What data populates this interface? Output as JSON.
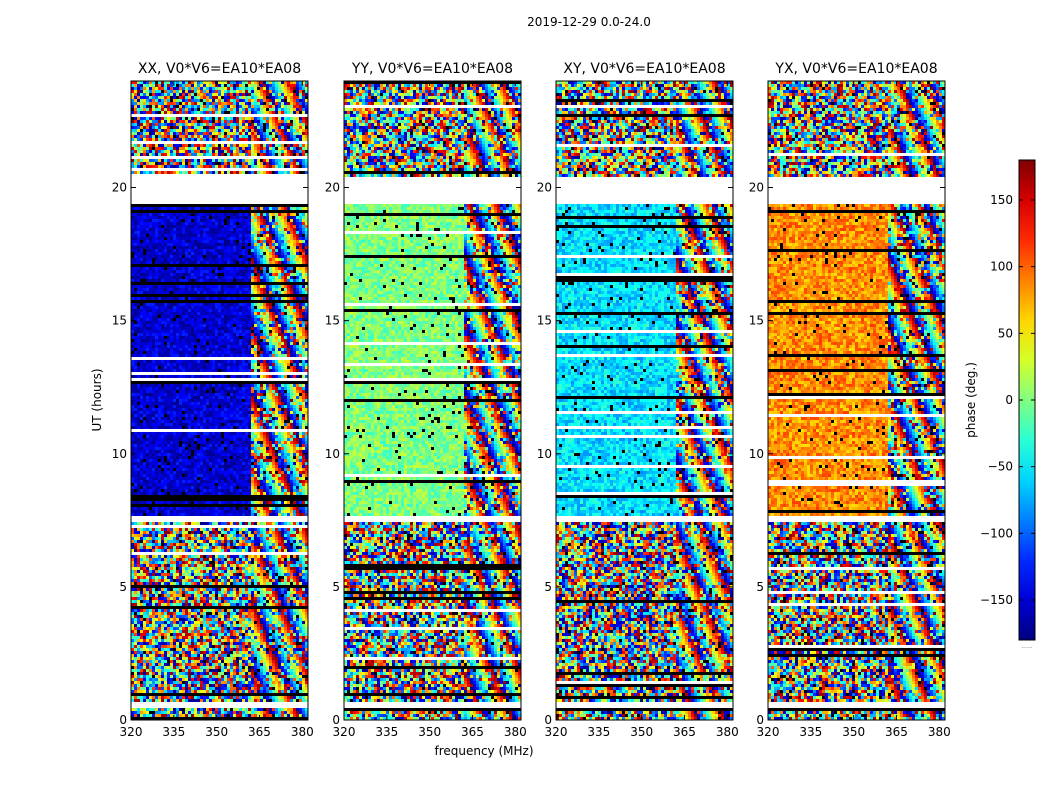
{
  "figure": {
    "suptitle": "2019-12-29 0.0-24.0",
    "xlabel": "frequency (MHz)",
    "ylabel": "UT (hours)",
    "colorbar_label": "phase (deg.)",
    "colorbar_bottom_label": "......",
    "colors": {
      "background": "#ffffff",
      "gap": "#ffffff",
      "flag": "#000000"
    }
  },
  "chart_data": {
    "type": "heatmap",
    "colormap": "jet",
    "x": {
      "label": "frequency (MHz)",
      "range": [
        320,
        382
      ],
      "ticks": [
        320,
        335,
        350,
        365,
        380
      ]
    },
    "y": {
      "label": "UT (hours)",
      "range": [
        0,
        24
      ],
      "ticks": [
        0,
        5,
        10,
        15,
        20
      ]
    },
    "color_scale": {
      "label": "phase (deg.)",
      "range": [
        -180,
        180
      ],
      "ticks": [
        -150,
        -100,
        -50,
        0,
        50,
        100,
        150
      ]
    },
    "data_gaps_hours": [
      [
        19.4,
        20.4
      ],
      [
        7.4,
        7.7
      ],
      [
        0.4,
        0.7
      ]
    ],
    "panels": [
      {
        "title": "XX, V0*V6=EA10*EA08",
        "base_phase": -150,
        "noise_deg": 55
      },
      {
        "title": "YY, V0*V6=EA10*EA08",
        "base_phase": 0,
        "noise_deg": 55
      },
      {
        "title": "XY, V0*V6=EA10*EA08",
        "base_phase": -55,
        "noise_deg": 60
      },
      {
        "title": "YX, V0*V6=EA10*EA08",
        "base_phase": 85,
        "noise_deg": 60
      }
    ]
  }
}
